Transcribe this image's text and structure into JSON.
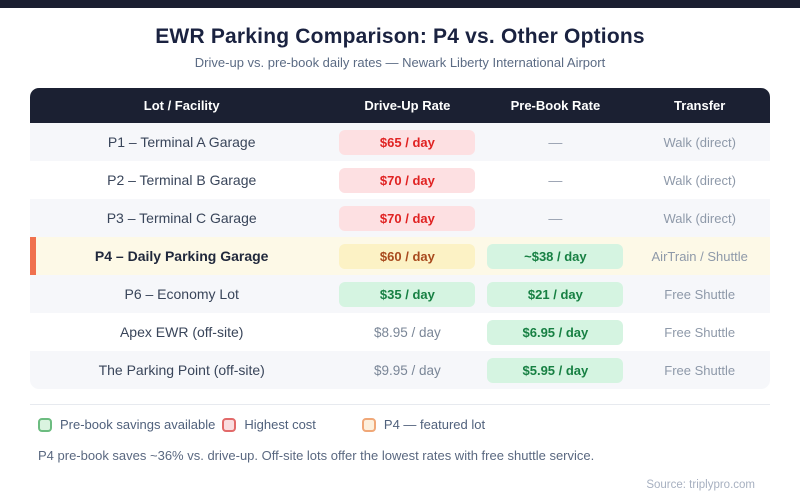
{
  "page": {
    "title": "EWR Parking Comparison: P4 vs. Other Options",
    "subtitle": "Drive-up vs. pre-book daily rates — Newark Liberty International Airport",
    "note": "P4 pre-book saves ~36% vs. drive-up. Off-site lots offer the lowest rates with free shuttle service.",
    "source": "Source: triplypro.com"
  },
  "colors": {
    "topbar": "#1b1f31",
    "header_bg": "#1b2032",
    "row_stripe": "#f6f7fa",
    "featured_row_bg": "#fdf9e7",
    "featured_accent": "#f0714e",
    "badge_red_bg": "#fde0e2",
    "badge_red_text": "#e02222",
    "badge_yellow_bg": "#fcf2c5",
    "badge_yellow_text": "#a84a1e",
    "badge_green_bg": "#d5f4e1",
    "badge_green_text": "#178043"
  },
  "table": {
    "headers": [
      "Lot / Facility",
      "Drive-Up Rate",
      "Pre-Book Rate",
      "Transfer"
    ],
    "rows": [
      {
        "name": "P1 – Terminal A Garage",
        "driveup": "$65 / day",
        "prebook": "—",
        "transfer": "Walk (direct)"
      },
      {
        "name": "P2 – Terminal B Garage",
        "driveup": "$70 / day",
        "prebook": "—",
        "transfer": "Walk (direct)"
      },
      {
        "name": "P3 – Terminal C Garage",
        "driveup": "$70 / day",
        "prebook": "—",
        "transfer": "Walk (direct)"
      },
      {
        "name": "P4 – Daily Parking Garage",
        "driveup": "$60 / day",
        "prebook": "~$38 / day",
        "transfer": "AirTrain / Shuttle"
      },
      {
        "name": "P6 – Economy Lot",
        "driveup": "$35 / day",
        "prebook": "$21 / day",
        "transfer": "Free Shuttle"
      },
      {
        "name": "Apex EWR (off-site)",
        "driveup": "$8.95 / day",
        "prebook": "$6.95 / day",
        "transfer": "Free Shuttle"
      },
      {
        "name": "The Parking Point (off-site)",
        "driveup": "$9.95 / day",
        "prebook": "$5.95 / day",
        "transfer": "Free Shuttle"
      }
    ]
  },
  "legend": {
    "items": [
      {
        "label": "Pre-book savings available",
        "swatch": "green"
      },
      {
        "label": "Highest cost",
        "swatch": "red"
      },
      {
        "label": "P4 — featured lot",
        "swatch": "orange"
      }
    ]
  },
  "chart_data": {
    "type": "table",
    "title": "EWR Parking Comparison: P4 vs. Other Options",
    "subtitle": "Drive-up vs. pre-book daily rates — Newark Liberty International Airport",
    "columns": [
      "Lot / Facility",
      "Drive-Up Rate",
      "Pre-Book Rate",
      "Transfer"
    ],
    "rows": [
      [
        "P1 – Terminal A Garage",
        65,
        null,
        "Walk (direct)"
      ],
      [
        "P2 – Terminal B Garage",
        70,
        null,
        "Walk (direct)"
      ],
      [
        "P3 – Terminal C Garage",
        70,
        null,
        "Walk (direct)"
      ],
      [
        "P4 – Daily Parking Garage",
        60,
        38,
        "AirTrain / Shuttle"
      ],
      [
        "P6 – Economy Lot",
        35,
        21,
        "Free Shuttle"
      ],
      [
        "Apex EWR (off-site)",
        8.95,
        6.95,
        "Free Shuttle"
      ],
      [
        "The Parking Point (off-site)",
        9.95,
        5.95,
        "Free Shuttle"
      ]
    ],
    "units": "USD per day",
    "annotations": [
      "P4 pre-book saves ~36% vs. drive-up. Off-site lots offer the lowest rates with free shuttle service."
    ],
    "highlighted_row": "P4 – Daily Parking Garage"
  }
}
